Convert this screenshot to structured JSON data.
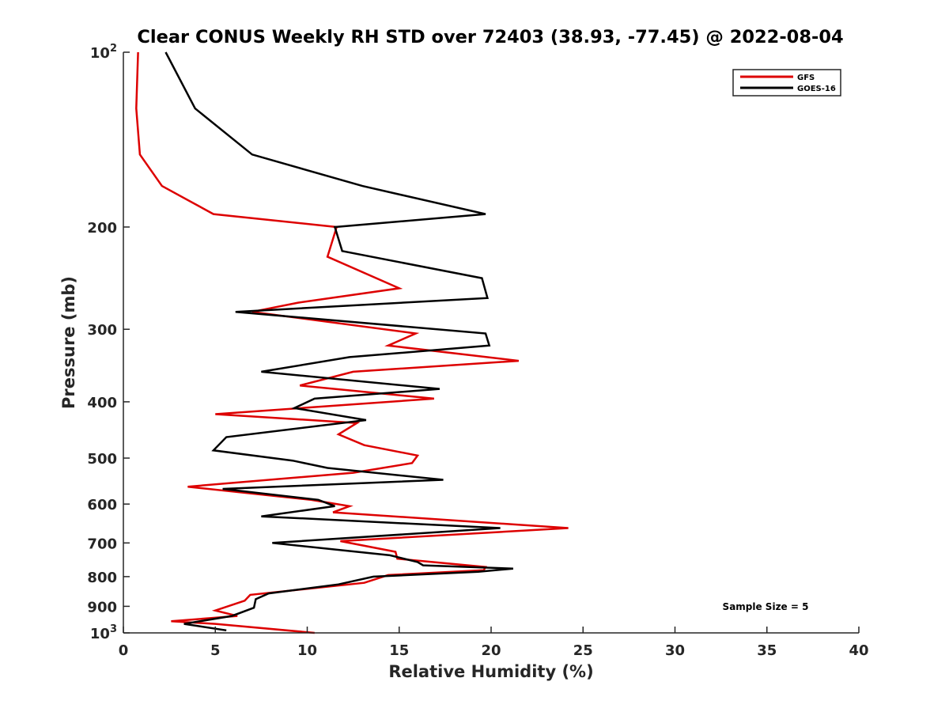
{
  "chart_data": {
    "type": "line",
    "title": "Clear CONUS Weekly RH STD over 72403 (38.93, -77.45) @ 2022-08-04",
    "xlabel": "Relative Humidity (%)",
    "ylabel": "Pressure (mb)",
    "xlim": [
      0,
      40
    ],
    "ylim": [
      100,
      1000
    ],
    "y_scale": "log",
    "y_reversed": true,
    "x_ticks": [
      "0",
      "5",
      "10",
      "15",
      "20",
      "25",
      "30",
      "35",
      "40"
    ],
    "y_ticks": [
      {
        "value": 100,
        "label": "10",
        "sup": "2"
      },
      {
        "value": 200,
        "label": "200",
        "sup": ""
      },
      {
        "value": 300,
        "label": "300",
        "sup": ""
      },
      {
        "value": 400,
        "label": "400",
        "sup": ""
      },
      {
        "value": 500,
        "label": "500",
        "sup": ""
      },
      {
        "value": 600,
        "label": "600",
        "sup": ""
      },
      {
        "value": 700,
        "label": "700",
        "sup": ""
      },
      {
        "value": 800,
        "label": "800",
        "sup": ""
      },
      {
        "value": 900,
        "label": "900",
        "sup": ""
      },
      {
        "value": 1000,
        "label": "10",
        "sup": "3"
      }
    ],
    "legend_position": "top-right",
    "grid": false,
    "annotation": "Sample Size = 5",
    "series": [
      {
        "name": "GFS",
        "color": "#dd0000",
        "points": [
          [
            0.8,
            100
          ],
          [
            0.7,
            125
          ],
          [
            0.9,
            150
          ],
          [
            2.1,
            170
          ],
          [
            4.9,
            190
          ],
          [
            11.6,
            200
          ],
          [
            11.1,
            225
          ],
          [
            15.0,
            255
          ],
          [
            9.5,
            270
          ],
          [
            7.0,
            280
          ],
          [
            15.9,
            305
          ],
          [
            14.4,
            320
          ],
          [
            21.5,
            340
          ],
          [
            12.5,
            355
          ],
          [
            9.6,
            375
          ],
          [
            16.9,
            395
          ],
          [
            5.0,
            420
          ],
          [
            12.7,
            435
          ],
          [
            11.7,
            455
          ],
          [
            13.1,
            475
          ],
          [
            16.0,
            495
          ],
          [
            15.7,
            510
          ],
          [
            12.5,
            530
          ],
          [
            3.5,
            560
          ],
          [
            10.2,
            590
          ],
          [
            12.3,
            605
          ],
          [
            11.4,
            620
          ],
          [
            24.2,
            660
          ],
          [
            11.8,
            695
          ],
          [
            14.8,
            725
          ],
          [
            14.9,
            745
          ],
          [
            19.7,
            770
          ],
          [
            19.6,
            780
          ],
          [
            14.4,
            795
          ],
          [
            13.1,
            820
          ],
          [
            6.9,
            860
          ],
          [
            6.6,
            880
          ],
          [
            5.0,
            915
          ],
          [
            6.2,
            935
          ],
          [
            2.6,
            955
          ],
          [
            5.0,
            965
          ],
          [
            10.4,
            1000
          ]
        ]
      },
      {
        "name": "GOES-16",
        "color": "#000000",
        "points": [
          [
            2.3,
            100
          ],
          [
            3.9,
            125
          ],
          [
            7.0,
            150
          ],
          [
            13.0,
            170
          ],
          [
            19.7,
            190
          ],
          [
            11.5,
            200
          ],
          [
            11.9,
            220
          ],
          [
            19.5,
            245
          ],
          [
            19.8,
            265
          ],
          [
            6.1,
            280
          ],
          [
            19.7,
            305
          ],
          [
            19.9,
            320
          ],
          [
            12.3,
            335
          ],
          [
            7.5,
            355
          ],
          [
            17.2,
            380
          ],
          [
            10.4,
            395
          ],
          [
            9.3,
            410
          ],
          [
            13.2,
            430
          ],
          [
            5.6,
            460
          ],
          [
            4.9,
            485
          ],
          [
            9.2,
            505
          ],
          [
            11.1,
            520
          ],
          [
            17.4,
            545
          ],
          [
            5.4,
            565
          ],
          [
            10.6,
            590
          ],
          [
            11.5,
            605
          ],
          [
            7.5,
            630
          ],
          [
            20.5,
            660
          ],
          [
            8.1,
            700
          ],
          [
            14.5,
            735
          ],
          [
            16.0,
            755
          ],
          [
            16.3,
            765
          ],
          [
            21.2,
            775
          ],
          [
            19.3,
            785
          ],
          [
            13.6,
            800
          ],
          [
            11.7,
            825
          ],
          [
            7.9,
            855
          ],
          [
            7.2,
            875
          ],
          [
            7.1,
            905
          ],
          [
            5.9,
            935
          ],
          [
            3.3,
            965
          ],
          [
            5.6,
            990
          ]
        ]
      }
    ]
  }
}
